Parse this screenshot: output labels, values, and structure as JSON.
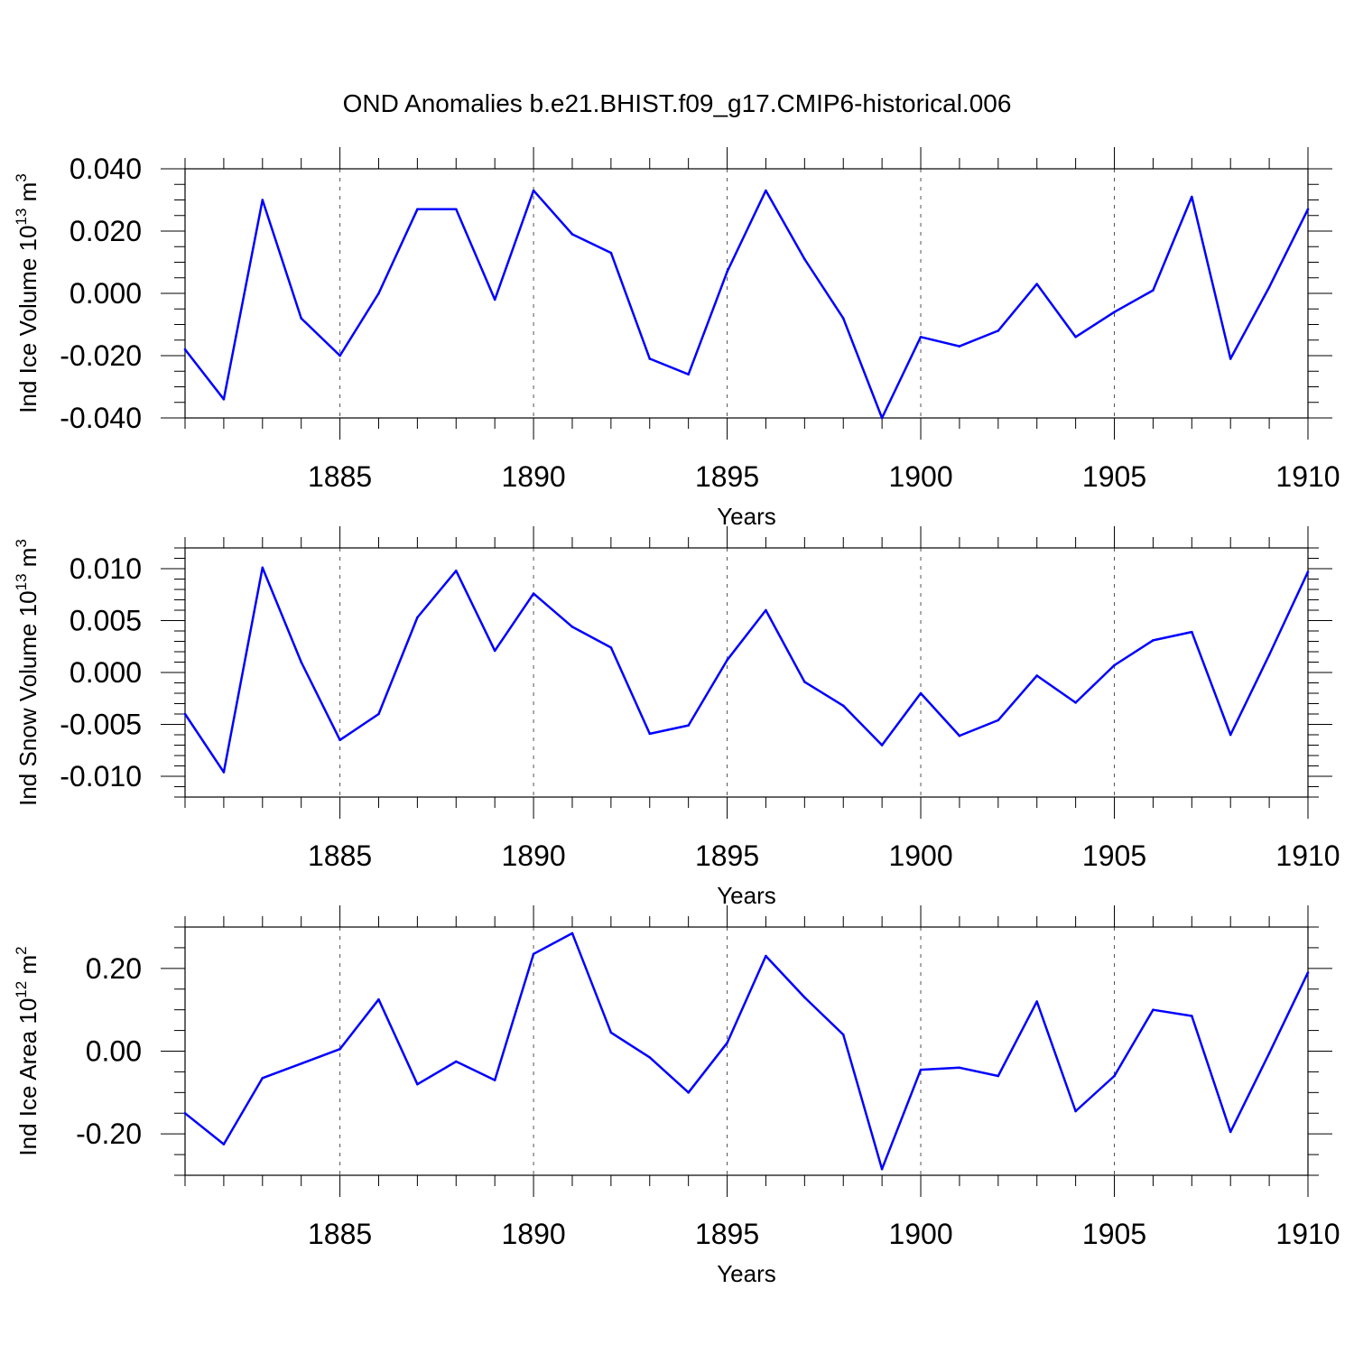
{
  "figure": {
    "title": "OND Anomalies b.e21.BHIST.f09_g17.CMIP6-historical.006"
  },
  "chart_data": [
    {
      "type": "line",
      "id": "ice-volume",
      "xlabel": "Years",
      "ylabel": "Ind Ice Volume 10",
      "ylabel_exp": "13",
      "ylabel_unit": " m",
      "ylabel_unit_exp": "3",
      "xlim": [
        1881,
        1910
      ],
      "ylim": [
        -0.04,
        0.04
      ],
      "xticks": [
        1885,
        1890,
        1895,
        1900,
        1905,
        1910
      ],
      "xtick_labels": [
        "1885",
        "1890",
        "1895",
        "1900",
        "1905",
        "1910"
      ],
      "yticks": [
        0.04,
        0.02,
        0.0,
        -0.02,
        -0.04
      ],
      "ytick_labels": [
        "0.040",
        "0.020",
        "0.000",
        "-0.020",
        "-0.040"
      ],
      "grid": "vertical dashed at major x ticks",
      "series": [
        {
          "name": "Ind Ice Volume",
          "color": "#0000ff",
          "x": [
            1881,
            1882,
            1883,
            1884,
            1885,
            1886,
            1887,
            1888,
            1889,
            1890,
            1891,
            1892,
            1893,
            1894,
            1895,
            1896,
            1897,
            1898,
            1899,
            1900,
            1901,
            1902,
            1903,
            1904,
            1905,
            1906,
            1907,
            1908,
            1909,
            1910
          ],
          "values": [
            -0.018,
            -0.034,
            0.03,
            -0.008,
            -0.02,
            0.0,
            0.027,
            0.027,
            -0.002,
            0.033,
            0.019,
            0.013,
            -0.021,
            -0.026,
            0.007,
            0.033,
            0.011,
            -0.008,
            -0.04,
            -0.014,
            -0.017,
            -0.012,
            0.003,
            -0.014,
            -0.006,
            0.001,
            0.031,
            -0.021,
            0.002,
            0.027
          ]
        }
      ]
    },
    {
      "type": "line",
      "id": "snow-volume",
      "xlabel": "Years",
      "ylabel": "Ind Snow Volume 10",
      "ylabel_exp": "13",
      "ylabel_unit": " m",
      "ylabel_unit_exp": "3",
      "xlim": [
        1881,
        1910
      ],
      "ylim": [
        -0.012,
        0.012
      ],
      "xticks": [
        1885,
        1890,
        1895,
        1900,
        1905,
        1910
      ],
      "xtick_labels": [
        "1885",
        "1890",
        "1895",
        "1900",
        "1905",
        "1910"
      ],
      "yticks": [
        0.01,
        0.005,
        0.0,
        -0.005,
        -0.01
      ],
      "ytick_labels": [
        "0.010",
        "0.005",
        "0.000",
        "-0.005",
        "-0.010"
      ],
      "grid": "vertical dashed at major x ticks",
      "series": [
        {
          "name": "Ind Snow Volume",
          "color": "#0000ff",
          "x": [
            1881,
            1882,
            1883,
            1884,
            1885,
            1886,
            1887,
            1888,
            1889,
            1890,
            1891,
            1892,
            1893,
            1894,
            1895,
            1896,
            1897,
            1898,
            1899,
            1900,
            1901,
            1902,
            1903,
            1904,
            1905,
            1906,
            1907,
            1908,
            1909,
            1910
          ],
          "values": [
            -0.004,
            -0.0096,
            0.0101,
            0.001,
            -0.0065,
            -0.004,
            0.0053,
            0.0098,
            0.0021,
            0.0076,
            0.0044,
            0.0024,
            -0.0059,
            -0.0051,
            0.0012,
            0.006,
            -0.0009,
            -0.0032,
            -0.007,
            -0.002,
            -0.0061,
            -0.0046,
            -0.0003,
            -0.0029,
            0.0007,
            0.0031,
            0.0039,
            -0.006,
            0.0017,
            0.0097
          ]
        }
      ]
    },
    {
      "type": "line",
      "id": "ice-area",
      "xlabel": "Years",
      "ylabel": "Ind Ice Area 10",
      "ylabel_exp": "12",
      "ylabel_unit": " m",
      "ylabel_unit_exp": "2",
      "xlim": [
        1881,
        1910
      ],
      "ylim": [
        -0.3,
        0.3
      ],
      "xticks": [
        1885,
        1890,
        1895,
        1900,
        1905,
        1910
      ],
      "xtick_labels": [
        "1885",
        "1890",
        "1895",
        "1900",
        "1905",
        "1910"
      ],
      "yticks": [
        0.2,
        0.0,
        -0.2
      ],
      "ytick_labels": [
        "0.20",
        "0.00",
        "-0.20"
      ],
      "grid": "vertical dashed at major x ticks",
      "series": [
        {
          "name": "Ind Ice Area",
          "color": "#0000ff",
          "x": [
            1881,
            1882,
            1883,
            1884,
            1885,
            1886,
            1887,
            1888,
            1889,
            1890,
            1891,
            1892,
            1893,
            1894,
            1895,
            1896,
            1897,
            1898,
            1899,
            1900,
            1901,
            1902,
            1903,
            1904,
            1905,
            1906,
            1907,
            1908,
            1909,
            1910
          ],
          "values": [
            -0.15,
            -0.225,
            -0.065,
            -0.03,
            0.005,
            0.125,
            -0.08,
            -0.025,
            -0.07,
            0.235,
            0.285,
            0.045,
            -0.015,
            -0.1,
            0.02,
            0.23,
            0.13,
            0.04,
            -0.285,
            -0.045,
            -0.04,
            -0.06,
            0.12,
            -0.145,
            -0.06,
            0.1,
            0.085,
            -0.195,
            -0.005,
            0.19
          ]
        }
      ]
    }
  ]
}
